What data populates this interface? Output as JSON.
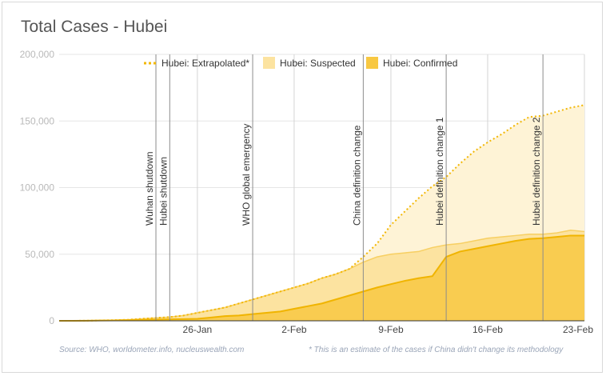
{
  "title": "Total Cases - Hubei",
  "footer": {
    "source": "Source: WHO, worldometer.info, nucleuswealth.com",
    "note": "* This is an estimate of the cases if China didn't change its methodology"
  },
  "chart_data": {
    "type": "area",
    "title": "Total Cases - Hubei",
    "x": [
      "2020-01-16",
      "2020-01-17",
      "2020-01-18",
      "2020-01-19",
      "2020-01-20",
      "2020-01-21",
      "2020-01-22",
      "2020-01-23",
      "2020-01-24",
      "2020-01-25",
      "2020-01-26",
      "2020-01-27",
      "2020-01-28",
      "2020-01-29",
      "2020-01-30",
      "2020-01-31",
      "2020-02-01",
      "2020-02-02",
      "2020-02-03",
      "2020-02-04",
      "2020-02-05",
      "2020-02-06",
      "2020-02-07",
      "2020-02-08",
      "2020-02-09",
      "2020-02-10",
      "2020-02-11",
      "2020-02-12",
      "2020-02-13",
      "2020-02-14",
      "2020-02-15",
      "2020-02-16",
      "2020-02-17",
      "2020-02-18",
      "2020-02-19",
      "2020-02-20",
      "2020-02-21",
      "2020-02-22",
      "2020-02-23"
    ],
    "series": [
      {
        "name": "Hubei: Extrapolated*",
        "style": "dotted-line",
        "color": "#f2b705",
        "values": [
          0,
          0,
          100,
          300,
          500,
          800,
          1500,
          2200,
          2800,
          4000,
          6000,
          8000,
          10000,
          13000,
          16000,
          19000,
          22000,
          25000,
          28000,
          32000,
          35000,
          39000,
          48000,
          58000,
          72000,
          82000,
          92000,
          101000,
          108000,
          118000,
          127000,
          134000,
          140000,
          147000,
          153000,
          154000,
          157000,
          160000,
          162000
        ]
      },
      {
        "name": "Hubei: Suspected",
        "style": "area",
        "color": "#fce3a0",
        "values": [
          0,
          0,
          100,
          300,
          500,
          800,
          1500,
          2200,
          2800,
          4000,
          6000,
          8000,
          10000,
          13000,
          16000,
          19000,
          22000,
          25000,
          28000,
          32000,
          35000,
          39000,
          44000,
          48000,
          50000,
          51000,
          52000,
          55000,
          57000,
          58000,
          60000,
          62000,
          63000,
          64000,
          65000,
          65000,
          66000,
          68000,
          67000
        ]
      },
      {
        "name": "Hubei: Confirmed",
        "style": "area",
        "color": "#f8c842",
        "values": [
          0,
          0,
          100,
          200,
          300,
          500,
          700,
          900,
          1100,
          1300,
          1500,
          2500,
          3500,
          4000,
          5000,
          6000,
          7000,
          9000,
          11000,
          13000,
          16000,
          19000,
          22000,
          25000,
          27500,
          30000,
          32000,
          33500,
          48000,
          52000,
          54000,
          56000,
          58000,
          60000,
          61500,
          62000,
          63000,
          64000,
          64000
        ]
      }
    ],
    "xticks": [
      "26-Jan",
      "2-Feb",
      "9-Feb",
      "16-Feb",
      "23-Feb"
    ],
    "xtick_dates": [
      "2020-01-26",
      "2020-02-02",
      "2020-02-09",
      "2020-02-16",
      "2020-02-23"
    ],
    "ylim": [
      0,
      200000
    ],
    "yticks": [
      0,
      50000,
      100000,
      150000,
      200000
    ],
    "ytick_labels": [
      "0",
      "50,000",
      "100,000",
      "150,000",
      "200,000"
    ],
    "grid": "vertical",
    "legend": "top",
    "annotations": [
      {
        "date": "2020-01-23",
        "label": "Wuhan shutdown"
      },
      {
        "date": "2020-01-24",
        "label": "Hubei shutdown"
      },
      {
        "date": "2020-01-30",
        "label": "WHO global emergency"
      },
      {
        "date": "2020-02-07",
        "label": "China definition change"
      },
      {
        "date": "2020-02-13",
        "label": "Hubei definition change 1"
      },
      {
        "date": "2020-02-20",
        "label": "Hubei definition change 2"
      }
    ]
  }
}
